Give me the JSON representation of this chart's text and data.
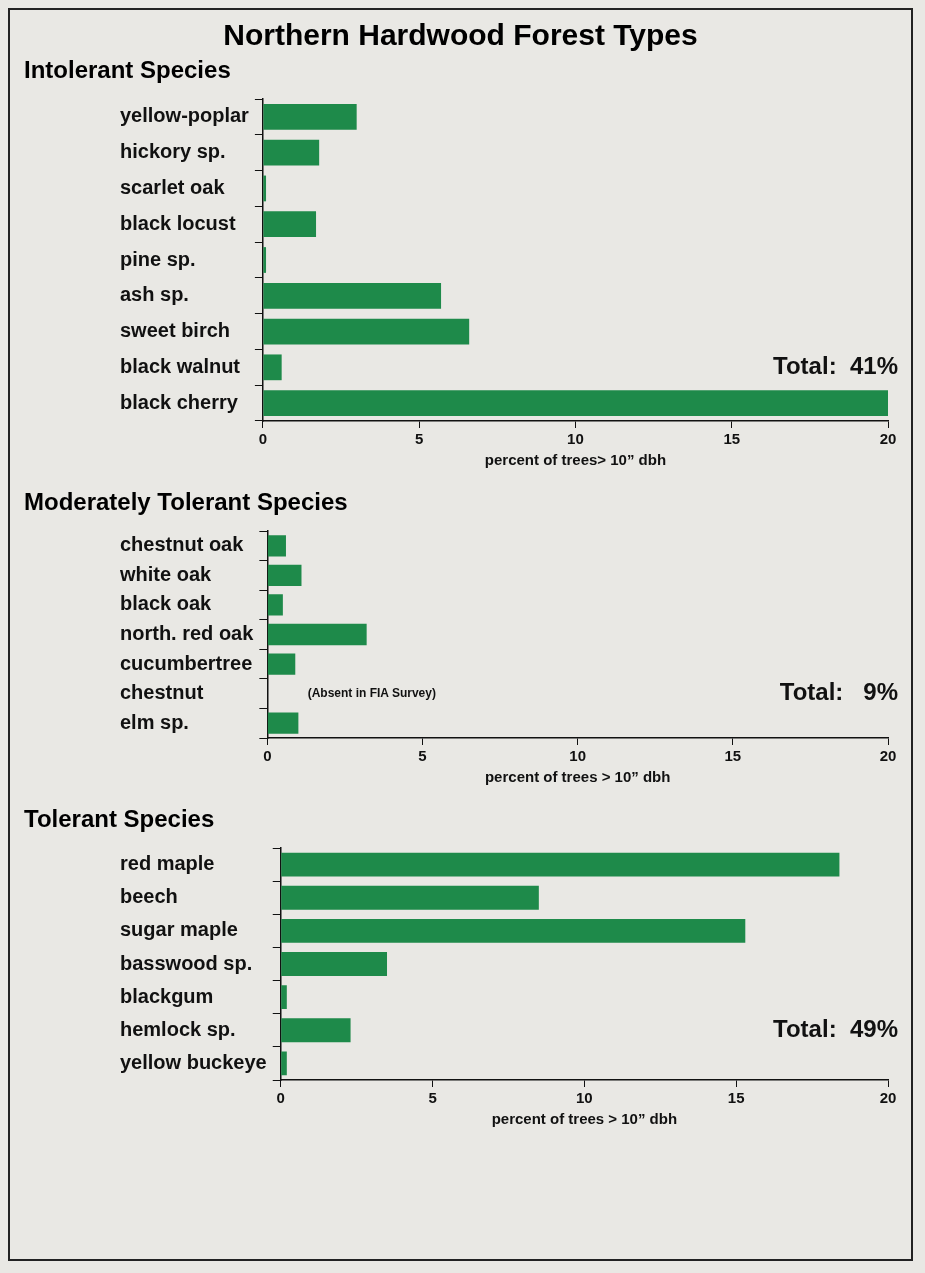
{
  "chart_data": [
    {
      "type": "bar",
      "orientation": "horizontal",
      "title": "Northern Hardwood Forest Types",
      "subtitle": "Intolerant Species",
      "xlabel": "percent of trees> 10” dbh",
      "categories": [
        "yellow-poplar",
        "hickory sp.",
        "scarlet oak",
        "black locust",
        "pine sp.",
        "ash sp.",
        "sweet birch",
        "black walnut",
        "black cherry"
      ],
      "values": [
        3.0,
        1.8,
        0.1,
        1.7,
        0.1,
        5.7,
        6.6,
        0.6,
        20.0
      ],
      "color": "#1e8a4a",
      "xlim": [
        0,
        20
      ],
      "xticks": [
        0,
        5,
        10,
        15,
        20
      ],
      "grid": false,
      "legend": false,
      "annotations": [
        "Total:  41%"
      ]
    },
    {
      "type": "bar",
      "orientation": "horizontal",
      "title": "Moderately Tolerant Species",
      "xlabel": "percent of trees > 10” dbh",
      "categories": [
        "chestnut oak",
        "white oak",
        "black oak",
        "north. red oak",
        "cucumbertree",
        "chestnut",
        "elm sp."
      ],
      "values": [
        0.6,
        1.1,
        0.5,
        3.2,
        0.9,
        null,
        1.0
      ],
      "color": "#1e8a4a",
      "xlim": [
        0,
        20
      ],
      "xticks": [
        0,
        5,
        10,
        15,
        20
      ],
      "grid": false,
      "legend": false,
      "annotations": [
        "(Absent in FIA Survey)",
        "Total:   9%"
      ]
    },
    {
      "type": "bar",
      "orientation": "horizontal",
      "title": "Tolerant Species",
      "xlabel": "percent of trees > 10” dbh",
      "categories": [
        "red maple",
        "beech",
        "sugar maple",
        "basswood sp.",
        "blackgum",
        "hemlock sp.",
        "yellow buckeye"
      ],
      "values": [
        18.4,
        8.5,
        15.3,
        3.5,
        0.2,
        2.3,
        0.2
      ],
      "color": "#1e8a4a",
      "xlim": [
        0,
        20
      ],
      "xticks": [
        0,
        5,
        10,
        15,
        20
      ],
      "grid": false,
      "legend": false,
      "annotations": [
        "Total:  49%"
      ]
    }
  ]
}
